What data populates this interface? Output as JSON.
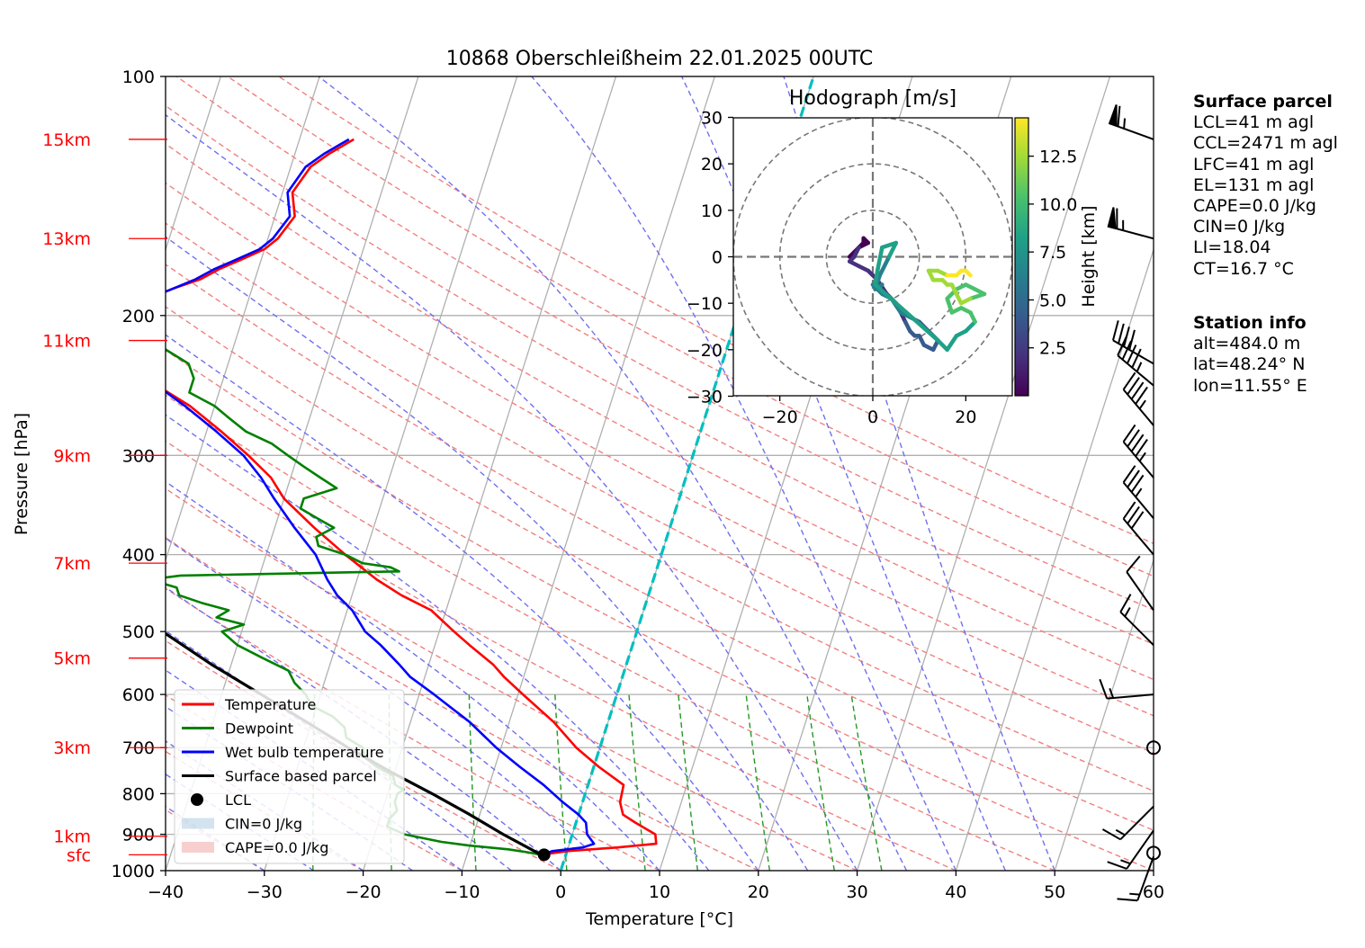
{
  "chart_data": [
    {
      "type": "line",
      "title": "10868 Oberschleißheim 22.01.2025 00UTC",
      "xlabel": "Temperature [°C]",
      "ylabel": "Pressure [hPa]",
      "xlim": [
        -40,
        60
      ],
      "ylim": [
        1000,
        100
      ],
      "y_scale": "log",
      "skew": true,
      "x_ticks": [
        "−40",
        "−30",
        "−20",
        "−10",
        "0",
        "10",
        "20",
        "30",
        "40",
        "50",
        "60"
      ],
      "y_ticks": [
        "100",
        "200",
        "300",
        "400",
        "500",
        "600",
        "700",
        "800",
        "900",
        "1000"
      ],
      "height_labels": [
        {
          "label": "15km",
          "p": 120
        },
        {
          "label": "13km",
          "p": 160
        },
        {
          "label": "11km",
          "p": 215
        },
        {
          "label": "9km",
          "p": 300
        },
        {
          "label": "7km",
          "p": 410
        },
        {
          "label": "5km",
          "p": 540
        },
        {
          "label": "3km",
          "p": 700
        },
        {
          "label": "1km",
          "p": 905
        },
        {
          "label": "sfc",
          "p": 955
        }
      ],
      "series": [
        {
          "name": "Temperature",
          "color": "#ff0000",
          "p": [
            955,
            945,
            935,
            925,
            900,
            870,
            850,
            820,
            780,
            740,
            700,
            650,
            600,
            570,
            550,
            520,
            500,
            470,
            450,
            430,
            400,
            370,
            340,
            320,
            300,
            280,
            260,
            245,
            235,
            225,
            215,
            205,
            200,
            195,
            190,
            185,
            180,
            175,
            170,
            165,
            160,
            150,
            140,
            130,
            125,
            120
          ],
          "t": [
            -2.5,
            0,
            5,
            8.8,
            8.4,
            6,
            4.5,
            3.8,
            3.6,
            0.5,
            -2.4,
            -5.5,
            -9.5,
            -12,
            -13.5,
            -16.5,
            -18.5,
            -21.5,
            -25,
            -28,
            -32,
            -36,
            -40,
            -42,
            -45,
            -48.5,
            -52.5,
            -56.5,
            -58.5,
            -60.5,
            -62.5,
            -62.5,
            -61.5,
            -61,
            -60,
            -58,
            -55.5,
            -54,
            -52,
            -50,
            -49,
            -48,
            -49,
            -48,
            -46.5,
            -44.5
          ]
        },
        {
          "name": "Dewpoint",
          "color": "#008000",
          "p": [
            955,
            948,
            940,
            930,
            920,
            900,
            880,
            860,
            840,
            820,
            800,
            790,
            780,
            760,
            740,
            720,
            700,
            680,
            660,
            640,
            620,
            600,
            580,
            560,
            540,
            520,
            500,
            490,
            480,
            470,
            460,
            450,
            440,
            430,
            425,
            420,
            415,
            410,
            400,
            390,
            380,
            370,
            360,
            350,
            340,
            330,
            320,
            310,
            300,
            290,
            280,
            270,
            260,
            250,
            240,
            230,
            220,
            210,
            200,
            195,
            190,
            185,
            180,
            175,
            170,
            165,
            160,
            150,
            140,
            130,
            120
          ],
          "t": [
            -2.5,
            -4,
            -6,
            -10,
            -13,
            -17,
            -19,
            -19,
            -18.5,
            -19,
            -19,
            -18.5,
            -19.5,
            -20,
            -22,
            -23.5,
            -24,
            -26,
            -26.5,
            -28,
            -30.5,
            -31.5,
            -33,
            -34,
            -37,
            -40,
            -42,
            -40,
            -43,
            -42,
            -45,
            -47.5,
            -48,
            -51,
            -48,
            -26,
            -27,
            -30,
            -32,
            -35,
            -35.5,
            -34,
            -36,
            -38,
            -38,
            -35,
            -37,
            -39,
            -41,
            -43,
            -46,
            -48,
            -50,
            -53,
            -53,
            -54,
            -57,
            -58,
            -62,
            -66,
            -73,
            -71,
            -69,
            -70,
            -69,
            -68,
            -68,
            -67.5,
            -67,
            -67,
            -66.5
          ]
        },
        {
          "name": "Wet bulb temperature",
          "color": "#0000ff",
          "p": [
            955,
            945,
            935,
            925,
            900,
            870,
            850,
            820,
            780,
            740,
            700,
            650,
            600,
            570,
            550,
            520,
            500,
            470,
            450,
            430,
            400,
            370,
            340,
            320,
            300,
            280,
            260,
            245,
            235,
            225,
            215,
            205,
            200,
            195,
            190,
            185,
            180,
            175,
            170,
            165,
            160,
            150,
            140,
            130,
            125,
            120
          ],
          "t": [
            -2.5,
            -1.5,
            1.5,
            2.5,
            1.5,
            1,
            0,
            -2,
            -4.5,
            -7.5,
            -10.5,
            -14,
            -18.5,
            -21.5,
            -23,
            -25.5,
            -27.5,
            -29.5,
            -31.5,
            -33,
            -35,
            -38,
            -41,
            -43,
            -45.5,
            -49,
            -53,
            -56.5,
            -59,
            -61,
            -63,
            -63,
            -62,
            -61.5,
            -60,
            -58,
            -56,
            -54.5,
            -52.5,
            -50.5,
            -49.5,
            -48.5,
            -49.5,
            -48.5,
            -47,
            -45
          ]
        },
        {
          "name": "Surface based parcel",
          "color": "#000000",
          "p": [
            955,
            900,
            850,
            800,
            750,
            700,
            650,
            600,
            550,
            500,
            450,
            400,
            350,
            300,
            280
          ],
          "t": [
            -2.5,
            -7,
            -11,
            -15.5,
            -20.5,
            -25.5,
            -30.5,
            -36,
            -42,
            -48,
            -55,
            -62,
            -70,
            -79,
            -84
          ]
        },
        {
          "name": "LCL",
          "color": "#000000",
          "p": [
            955
          ],
          "t": [
            -2.2
          ]
        }
      ],
      "legend": {
        "position": "lower-left",
        "entries": [
          "Temperature",
          "Dewpoint",
          "Wet bulb temperature",
          "Surface based parcel",
          "LCL",
          "CIN=0 J/kg",
          "CAPE=0.0 J/kg"
        ]
      },
      "wind_barbs": [
        {
          "p": 120,
          "spd_kt": 65,
          "dir": 290
        },
        {
          "p": 160,
          "spd_kt": 65,
          "dir": 285
        },
        {
          "p": 230,
          "spd_kt": 40,
          "dir": 300
        },
        {
          "p": 245,
          "spd_kt": 45,
          "dir": 310
        },
        {
          "p": 275,
          "spd_kt": 45,
          "dir": 320
        },
        {
          "p": 320,
          "spd_kt": 45,
          "dir": 320
        },
        {
          "p": 360,
          "spd_kt": 35,
          "dir": 320
        },
        {
          "p": 400,
          "spd_kt": 30,
          "dir": 320
        },
        {
          "p": 470,
          "spd_kt": 10,
          "dir": 325
        },
        {
          "p": 520,
          "spd_kt": 15,
          "dir": 315
        },
        {
          "p": 600,
          "spd_kt": 15,
          "dir": 265
        },
        {
          "p": 700,
          "spd_kt": 0,
          "dir": 0
        },
        {
          "p": 830,
          "spd_kt": 15,
          "dir": 225
        },
        {
          "p": 890,
          "spd_kt": 15,
          "dir": 215
        },
        {
          "p": 950,
          "spd_kt": 0,
          "dir": 0
        },
        {
          "p": 960,
          "spd_kt": 15,
          "dir": 200
        }
      ]
    },
    {
      "type": "line",
      "title": "Hodograph [m/s]",
      "xlim": [
        -30,
        30
      ],
      "ylim": [
        -30,
        30
      ],
      "x_ticks": [
        "−20",
        "0",
        "20"
      ],
      "y_ticks": [
        "30",
        "20",
        "10",
        "0",
        "−10",
        "−20",
        "−30"
      ],
      "rings": [
        10,
        20,
        30
      ],
      "colorbar": {
        "label": "Height [km]",
        "ticks": [
          "2.5",
          "5.0",
          "7.5",
          "10.0",
          "12.5"
        ],
        "range": [
          0,
          14.5
        ]
      },
      "u": [
        0.5,
        1,
        2,
        5,
        3.5,
        1.5,
        0.5,
        2,
        1,
        0,
        2,
        4,
        6,
        8,
        10,
        12,
        14,
        13,
        11,
        10,
        9,
        8,
        7,
        6,
        5,
        3,
        1,
        -1,
        -3,
        -5,
        -4,
        -3,
        -2,
        -2,
        -1,
        -3,
        -5
      ],
      "v": [
        -6,
        -3,
        2,
        3,
        0,
        -4,
        -7,
        -6,
        -7,
        -6,
        -8,
        -9,
        -12,
        -13,
        -14,
        -16,
        -18,
        -20,
        -19,
        -17,
        -17,
        -16,
        -14,
        -12,
        -10,
        -8,
        -5,
        -3,
        -2,
        -1,
        0,
        2,
        3,
        4,
        3,
        2,
        0
      ],
      "series_note_u_high": [
        14,
        16,
        18,
        20,
        22,
        21,
        19,
        17,
        16,
        18,
        20,
        22,
        24,
        21,
        19,
        18,
        17,
        16,
        15,
        13,
        12,
        14,
        16,
        18,
        19,
        20,
        21
      ],
      "series_note_v_high": [
        -18,
        -20,
        -17,
        -16,
        -14,
        -12,
        -11,
        -12,
        -9,
        -7,
        -6,
        -7,
        -8,
        -9,
        -10,
        -8,
        -6,
        -6,
        -5,
        -5,
        -3,
        -3,
        -4,
        -4,
        -3,
        -3,
        -4
      ]
    }
  ],
  "panel": {
    "surface_title": "Surface parcel",
    "surface_lines": [
      "LCL=41 m agl",
      "CCL=2471 m agl",
      "LFC=41 m agl",
      "EL=131 m agl",
      "CAPE=0.0 J/kg",
      "CIN=0 J/kg",
      "LI=18.04",
      "CT=16.7 °C"
    ],
    "station_title": "Station info",
    "station_lines": [
      "alt=484.0 m",
      "lat=48.24° N",
      "lon=11.55° E"
    ]
  },
  "colors": {
    "temperature": "#ff0000",
    "dewpoint": "#008000",
    "wetbulb": "#0000ff",
    "parcel": "#000000",
    "cyan_line": "#00bfbf",
    "dry_adiabat": "#f08080",
    "moist_adiabat": "#7070ee",
    "mixing_ratio": "#229922"
  }
}
